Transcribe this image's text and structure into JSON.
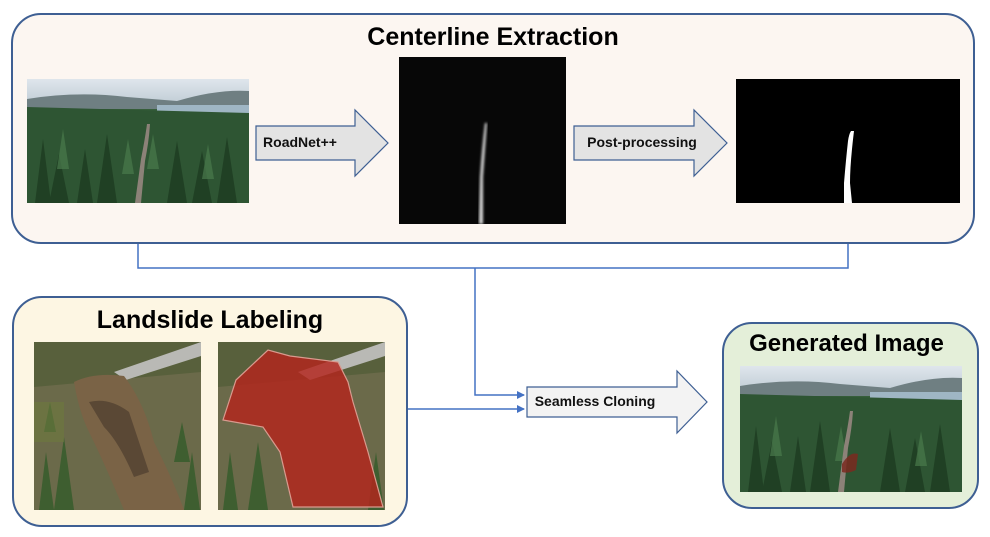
{
  "panels": {
    "centerline": {
      "title": "Centerline Extraction"
    },
    "landslide": {
      "title": "Landslide Labeling"
    },
    "generated": {
      "title": "Generated Image"
    }
  },
  "arrows": {
    "roadnet": "RoadNet++",
    "postprocessing": "Post-processing",
    "seamless": "Seamless Cloning"
  },
  "colors": {
    "panel_border": "#3e5f93",
    "centerline_fill": "#fcf6f1",
    "landslide_fill": "#fdf6e3",
    "generated_fill": "#e4efd9",
    "connector": "#4472c4",
    "arrow_fill": "#e3e3e3",
    "mask_overlay": "#b3241c"
  }
}
